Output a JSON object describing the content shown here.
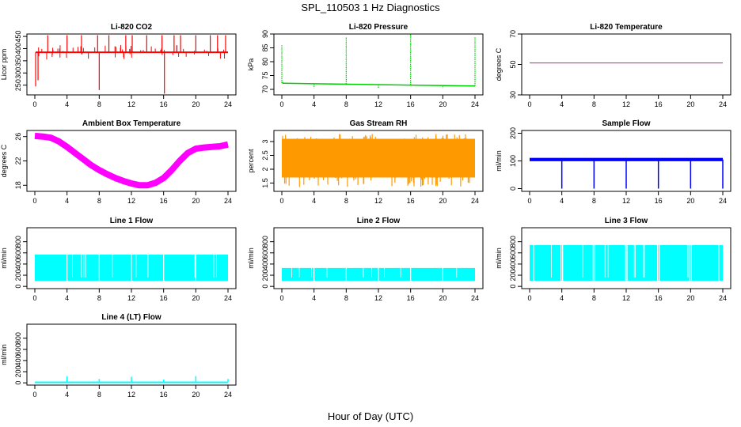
{
  "figure": {
    "title": "SPL_110503  1 Hz Diagnostics",
    "xlabel": "Hour of Day (UTC)"
  },
  "chart_data": [
    {
      "id": "co2",
      "type": "line",
      "title": "Li-820 CO2",
      "ylabel": "Licor ppm",
      "color": "#ff0000",
      "xlim": [
        0,
        24
      ],
      "ylim": [
        210,
        460
      ],
      "x_ticks": [
        0,
        4,
        8,
        12,
        16,
        20,
        24
      ],
      "y_ticks": [
        250,
        300,
        350,
        400,
        450
      ],
      "baseline": 385,
      "baseline_range": [
        0.1,
        24
      ],
      "spikes": [
        {
          "x": 0.1,
          "y": 245
        },
        {
          "x": 0.4,
          "y": 270
        },
        {
          "x": 1.6,
          "y": 455
        },
        {
          "x": 3.1,
          "y": 400
        },
        {
          "x": 4.0,
          "y": 455
        },
        {
          "x": 5.8,
          "y": 455
        },
        {
          "x": 7.8,
          "y": 455
        },
        {
          "x": 8.0,
          "y": 230
        },
        {
          "x": 9.2,
          "y": 455
        },
        {
          "x": 11.3,
          "y": 455
        },
        {
          "x": 12.1,
          "y": 455
        },
        {
          "x": 13.9,
          "y": 455
        },
        {
          "x": 15.8,
          "y": 455
        },
        {
          "x": 16.1,
          "y": 215
        },
        {
          "x": 17.3,
          "y": 455
        },
        {
          "x": 18.1,
          "y": 455
        },
        {
          "x": 20.0,
          "y": 455
        },
        {
          "x": 21.8,
          "y": 455
        },
        {
          "x": 22.7,
          "y": 455
        },
        {
          "x": 23.7,
          "y": 455
        }
      ]
    },
    {
      "id": "pressure",
      "type": "line",
      "title": "Li-820 Pressure",
      "ylabel": "kPa",
      "color": "#00cc00",
      "xlim": [
        0,
        24
      ],
      "ylim": [
        68,
        90
      ],
      "x_ticks": [
        0,
        4,
        8,
        12,
        16,
        20,
        24
      ],
      "y_ticks": [
        70,
        75,
        80,
        85,
        90
      ],
      "baseline": 72.2,
      "baseline_end": 71.2,
      "spikes": [
        {
          "x": 0.0,
          "y": 86
        },
        {
          "x": 0.1,
          "y": 73
        },
        {
          "x": 4.0,
          "y": 70.5
        },
        {
          "x": 8.0,
          "y": 89
        },
        {
          "x": 12.0,
          "y": 70.5
        },
        {
          "x": 16.0,
          "y": 90
        },
        {
          "x": 20.0,
          "y": 70.5
        },
        {
          "x": 24.0,
          "y": 89
        }
      ]
    },
    {
      "id": "li820temp",
      "type": "line",
      "title": "Li-820 Temperature",
      "ylabel": "degrees C",
      "color": "#ff00aa",
      "xlim": [
        0,
        24
      ],
      "ylim": [
        30,
        70
      ],
      "x_ticks": [
        0,
        4,
        8,
        12,
        16,
        20,
        24
      ],
      "y_ticks": [
        30,
        50,
        70
      ],
      "value": 51
    },
    {
      "id": "ambient",
      "type": "line",
      "title": "Ambient Box Temperature",
      "ylabel": "degrees C",
      "color": "#ff00ff",
      "xlim": [
        0,
        24
      ],
      "ylim": [
        17,
        27
      ],
      "x_ticks": [
        0,
        4,
        8,
        12,
        16,
        20,
        24
      ],
      "y_ticks": [
        18,
        22,
        26
      ],
      "x": [
        0,
        1,
        2,
        3,
        4,
        5,
        6,
        7,
        8,
        9,
        10,
        11,
        12,
        13,
        14,
        15,
        16,
        17,
        18,
        19,
        20,
        21,
        22,
        23,
        24
      ],
      "y": [
        26.1,
        26.0,
        25.8,
        25.2,
        24.3,
        23.3,
        22.3,
        21.3,
        20.5,
        19.8,
        19.2,
        18.7,
        18.3,
        18.0,
        18.0,
        18.4,
        19.2,
        20.5,
        22.0,
        23.3,
        24.0,
        24.2,
        24.3,
        24.4,
        24.7
      ]
    },
    {
      "id": "rh",
      "type": "line",
      "title": "Gas Stream RH",
      "ylabel": "percent",
      "color": "#ff9900",
      "xlim": [
        0,
        24
      ],
      "ylim": [
        1.2,
        3.4
      ],
      "x_ticks": [
        0,
        4,
        8,
        12,
        16,
        20,
        24
      ],
      "y_ticks": [
        1.5,
        2.0,
        2.5,
        3.0
      ],
      "band": [
        1.7,
        3.1
      ]
    },
    {
      "id": "sample",
      "type": "line",
      "title": "Sample Flow",
      "ylabel": "ml/min",
      "color": "#0000ff",
      "xlim": [
        0,
        24
      ],
      "ylim": [
        -10,
        210
      ],
      "x_ticks": [
        0,
        4,
        8,
        12,
        16,
        20,
        24
      ],
      "y_ticks": [
        0,
        100,
        200
      ],
      "baseline": 105,
      "dips": [
        {
          "x": 4.0,
          "y": 0
        },
        {
          "x": 8.0,
          "y": 0
        },
        {
          "x": 12.0,
          "y": 0
        },
        {
          "x": 16.0,
          "y": 0
        },
        {
          "x": 20.0,
          "y": 0
        },
        {
          "x": 24.0,
          "y": 0
        }
      ]
    },
    {
      "id": "line1",
      "type": "line",
      "title": "Line 1 Flow",
      "ylabel": "ml/min",
      "color": "#00ffff",
      "xlim": [
        0,
        24
      ],
      "ylim": [
        -40,
        1050
      ],
      "x_ticks": [
        0,
        4,
        8,
        12,
        16,
        20,
        24
      ],
      "y_ticks": [
        0,
        200,
        400,
        600,
        800
      ],
      "band": [
        100,
        570
      ],
      "gaps": [
        4.0,
        8.0,
        12.0,
        16.0,
        20.0
      ]
    },
    {
      "id": "line2",
      "type": "line",
      "title": "Line 2 Flow",
      "ylabel": "ml/min",
      "color": "#00ffff",
      "xlim": [
        0,
        24
      ],
      "ylim": [
        -40,
        1050
      ],
      "x_ticks": [
        0,
        4,
        8,
        12,
        16,
        20,
        24
      ],
      "y_ticks": [
        0,
        200,
        400,
        600,
        800
      ],
      "band": [
        100,
        330
      ],
      "gaps": [
        4.0,
        8.0,
        12.0,
        16.0,
        20.0
      ]
    },
    {
      "id": "line3",
      "type": "line",
      "title": "Line 3 Flow",
      "ylabel": "ml/min",
      "color": "#00ffff",
      "xlim": [
        0,
        24
      ],
      "ylim": [
        -40,
        1050
      ],
      "x_ticks": [
        0,
        4,
        8,
        12,
        16,
        20,
        24
      ],
      "y_ticks": [
        0,
        200,
        400,
        600,
        800
      ],
      "band": [
        100,
        740
      ],
      "gaps": [
        0.5,
        3.9,
        4.1,
        7.9,
        8.1,
        11.9,
        12.1,
        15.9,
        16.1,
        19.9,
        20.1,
        23.5
      ]
    },
    {
      "id": "line4",
      "type": "line",
      "title": "Line 4 (LT) Flow",
      "ylabel": "ml/min",
      "color": "#00ffff",
      "xlim": [
        0,
        24
      ],
      "ylim": [
        -40,
        1050
      ],
      "x_ticks": [
        0,
        4,
        8,
        12,
        16,
        20,
        24
      ],
      "y_ticks": [
        0,
        200,
        400,
        600,
        800
      ],
      "baseline": 10,
      "spikes": [
        {
          "x": 4.0,
          "y": 120
        },
        {
          "x": 8.0,
          "y": 70
        },
        {
          "x": 12.0,
          "y": 110
        },
        {
          "x": 16.0,
          "y": 60
        },
        {
          "x": 20.0,
          "y": 120
        },
        {
          "x": 24.0,
          "y": 70
        }
      ]
    }
  ]
}
